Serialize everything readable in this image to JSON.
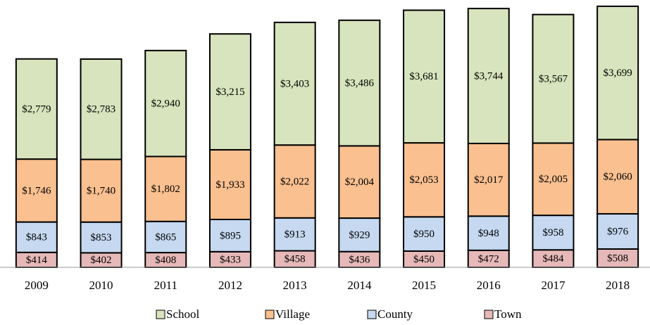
{
  "chart_data": {
    "type": "stacked_bar",
    "categories": [
      "2009",
      "2010",
      "2011",
      "2012",
      "2013",
      "2014",
      "2015",
      "2016",
      "2017",
      "2018"
    ],
    "series": [
      {
        "name": "School",
        "color": "#d7e4bd",
        "values": [
          2779,
          2783,
          2940,
          3215,
          3403,
          3486,
          3681,
          3744,
          3567,
          3699
        ],
        "value_labels": [
          "$2,779",
          "$2,783",
          "$2,940",
          "$3,215",
          "$3,403",
          "$3,486",
          "$3,681",
          "$3,744",
          "$3,567",
          "$3,699"
        ]
      },
      {
        "name": "Village",
        "color": "#fac090",
        "values": [
          1746,
          1740,
          1802,
          1933,
          2022,
          2004,
          2053,
          2017,
          2005,
          2060
        ],
        "value_labels": [
          "$1,746",
          "$1,740",
          "$1,802",
          "$1,933",
          "$2,022",
          "$2,004",
          "$2,053",
          "$2,017",
          "$2,005",
          "$2,060"
        ]
      },
      {
        "name": "County",
        "color": "#c6d9f1",
        "values": [
          843,
          853,
          865,
          895,
          913,
          929,
          950,
          948,
          958,
          976
        ],
        "value_labels": [
          "$843",
          "$853",
          "$865",
          "$895",
          "$913",
          "$929",
          "$950",
          "$948",
          "$958",
          "$976"
        ]
      },
      {
        "name": "Town",
        "color": "#e6b9b8",
        "values": [
          414,
          402,
          408,
          433,
          458,
          436,
          450,
          472,
          484,
          508
        ],
        "value_labels": [
          "$414",
          "$402",
          "$408",
          "$433",
          "$458",
          "$436",
          "$450",
          "$472",
          "$484",
          "$508"
        ]
      }
    ],
    "ylim": [
      0,
      7300
    ]
  }
}
